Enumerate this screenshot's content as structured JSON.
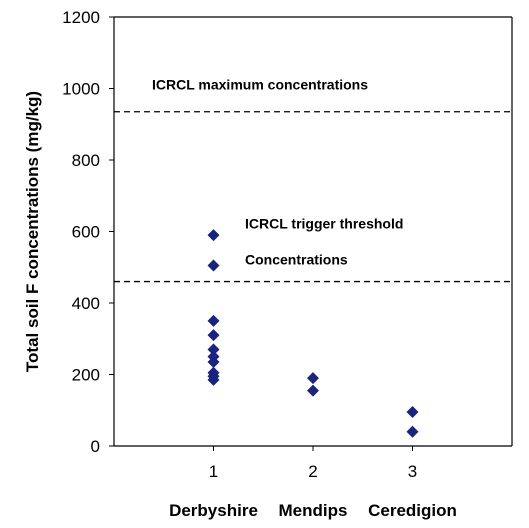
{
  "chart_data": {
    "type": "scatter",
    "ylabel": "Total soil F concentrations (mg/kg)",
    "xlabel": "",
    "ylim": [
      0,
      1200
    ],
    "xlim": [
      0,
      4
    ],
    "yticks": [
      0,
      200,
      400,
      600,
      800,
      1000,
      1200
    ],
    "xticks": [
      1,
      2,
      3
    ],
    "category_labels": [
      "Derbyshire",
      "Mendips",
      "Ceredigion"
    ],
    "series": [
      {
        "marker": "diamond",
        "color": "#1a237e",
        "points": [
          {
            "x": 1,
            "y": 590
          },
          {
            "x": 1,
            "y": 505
          },
          {
            "x": 1,
            "y": 350
          },
          {
            "x": 1,
            "y": 310
          },
          {
            "x": 1,
            "y": 270
          },
          {
            "x": 1,
            "y": 250
          },
          {
            "x": 1,
            "y": 235
          },
          {
            "x": 1,
            "y": 205
          },
          {
            "x": 1,
            "y": 195
          },
          {
            "x": 1,
            "y": 185
          },
          {
            "x": 2,
            "y": 190
          },
          {
            "x": 2,
            "y": 155
          },
          {
            "x": 3,
            "y": 95
          },
          {
            "x": 3,
            "y": 40
          }
        ]
      }
    ],
    "reference_lines": [
      {
        "y": 935,
        "style": "dashed",
        "label": "ICRCL  maximum concentrations"
      },
      {
        "y": 460,
        "style": "dashed",
        "label_line1": "ICRCL  trigger threshold",
        "label_line2": "Concentrations"
      }
    ],
    "grid": false,
    "legend": "none"
  }
}
